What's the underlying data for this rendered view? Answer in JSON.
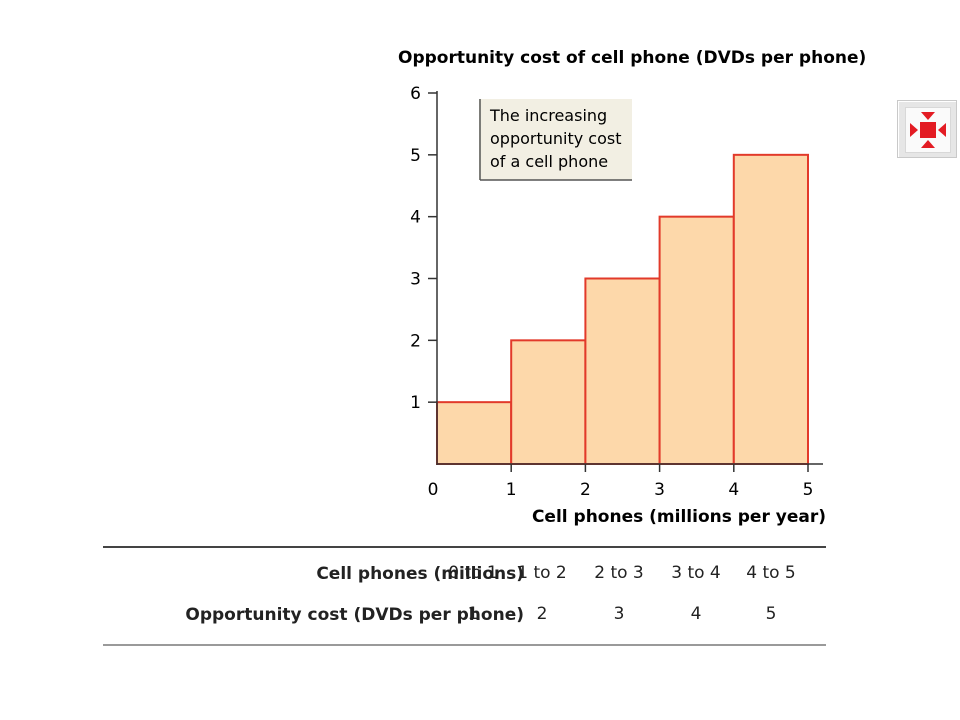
{
  "chart_data": {
    "type": "bar",
    "title": "",
    "ylabel": "Opportunity cost of cell phone (DVDs per phone)",
    "xlabel": "Cell phones (millions per year)",
    "x_ticks": [
      "0",
      "1",
      "2",
      "3",
      "4",
      "5"
    ],
    "y_ticks": [
      "1",
      "2",
      "3",
      "4",
      "5",
      "6"
    ],
    "xlim": [
      0,
      5
    ],
    "ylim": [
      0,
      6
    ],
    "bars": [
      {
        "x0": 0,
        "x1": 1,
        "value": 1
      },
      {
        "x0": 1,
        "x1": 2,
        "value": 2
      },
      {
        "x0": 2,
        "x1": 3,
        "value": 3
      },
      {
        "x0": 3,
        "x1": 4,
        "value": 4
      },
      {
        "x0": 4,
        "x1": 5,
        "value": 5
      }
    ],
    "annotation": [
      "The increasing",
      "opportunity cost",
      "of a cell phone"
    ],
    "grid": false,
    "colors": {
      "fill": "#fdd8aa",
      "stroke": "#e23a2a"
    }
  },
  "table": {
    "rows": [
      {
        "header": "Cell phones (millions)",
        "cells": [
          "0 to 1",
          "1 to 2",
          "2 to 3",
          "3 to 4",
          "4 to 5"
        ]
      },
      {
        "header": "Opportunity cost (DVDs per phone)",
        "cells": [
          "1",
          "2",
          "3",
          "4",
          "5"
        ]
      }
    ]
  },
  "expand_button": {
    "icon": "expand-arrows-icon",
    "color": "#e31b23"
  }
}
